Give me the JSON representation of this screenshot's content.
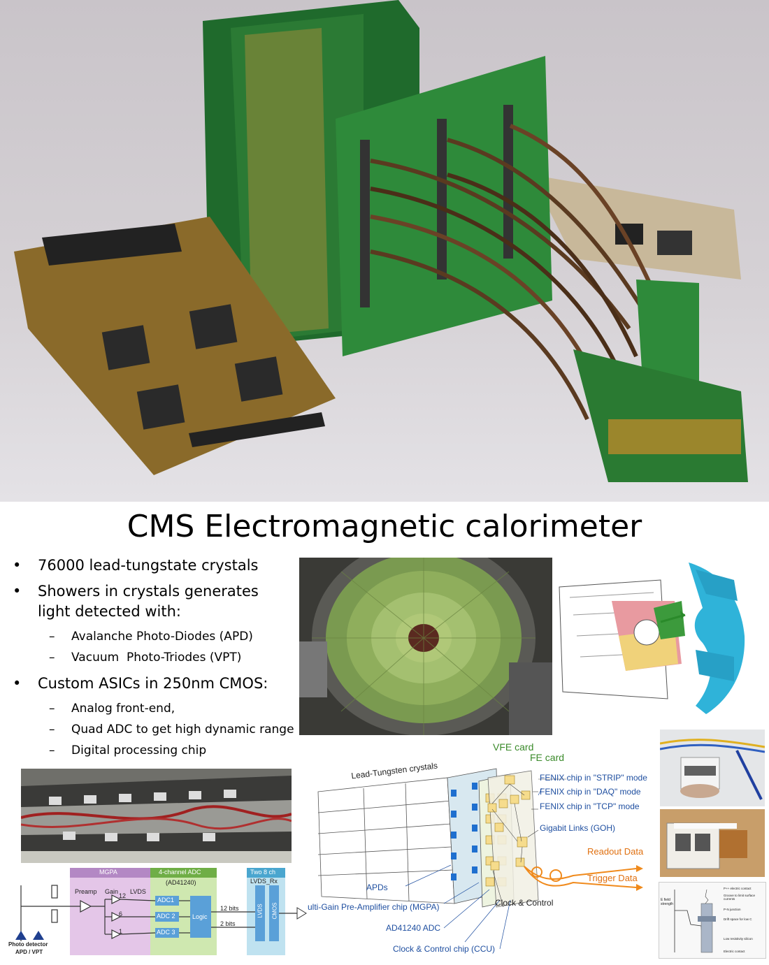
{
  "title": "CMS Electromagnetic calorimeter",
  "bullets": [
    {
      "text": "76000 lead-tungstate crystals",
      "sub": []
    },
    {
      "text": "Showers in crystals generates light detected with:",
      "sub": [
        "Avalanche Photo-Diodes (APD)",
        "Vacuum  Photo-Triodes (VPT)"
      ]
    },
    {
      "text": "Custom ASICs in 250nm CMOS:",
      "sub": [
        "Analog front-end,",
        "Quad ADC to get high dynamic range",
        "Digital processing chip"
      ]
    }
  ],
  "block_diagram": {
    "mgpa": "MGPA",
    "adc_header": "4-channel ADC",
    "adc_part": "(AD41240)",
    "lvds_header": "Two 8 ch",
    "lvds_rx": "LVDS_Rx",
    "preamp": "Preamp",
    "gain": "Gain",
    "lvds": "LVDS",
    "g12": "12",
    "g6": "6",
    "g1": "1",
    "adc1": "ADC1",
    "adc2": "ADC 2",
    "adc3": "ADC 3",
    "logic": "Logic",
    "bits12": "12 bits",
    "bits2": "2 bits",
    "lvds_v": "LVDS",
    "cmos_v": "CMOS",
    "photo_detector": "Photo detector",
    "apd_vpt": "APD / VPT"
  },
  "readout_diagram": {
    "crystals": "Lead-Tungsten crystals",
    "vfe": "VFE card",
    "fe": "FE card",
    "strip": "FENIX chip in \"STRIP\" mode",
    "daq": "FENIX chip in \"DAQ\" mode",
    "tcp": "FENIX chip in \"TCP\" mode",
    "goh": "Gigabit Links (GOH)",
    "readout": "Readout Data",
    "trigger": "Trigger Data",
    "apds": "APDs",
    "mgpa": "ulti-Gain Pre-Amplifier chip (MGPA)",
    "clock": "Clock & Control",
    "adc": "AD41240 ADC",
    "ccu": "Clock & Control chip (CCU)"
  },
  "field_diagram": {
    "efield": "E field strength",
    "l1": "P++ electric contact",
    "l2": "Groove to limit surface currents",
    "l3": "P-N junction",
    "l4": "Drift space for low C",
    "l5": "Low resistivity silicon",
    "l6": "Electric contact"
  },
  "colors": {
    "blue_label": "#1f4fa0",
    "green_label": "#3a8a2a",
    "orange_label": "#e07010"
  }
}
